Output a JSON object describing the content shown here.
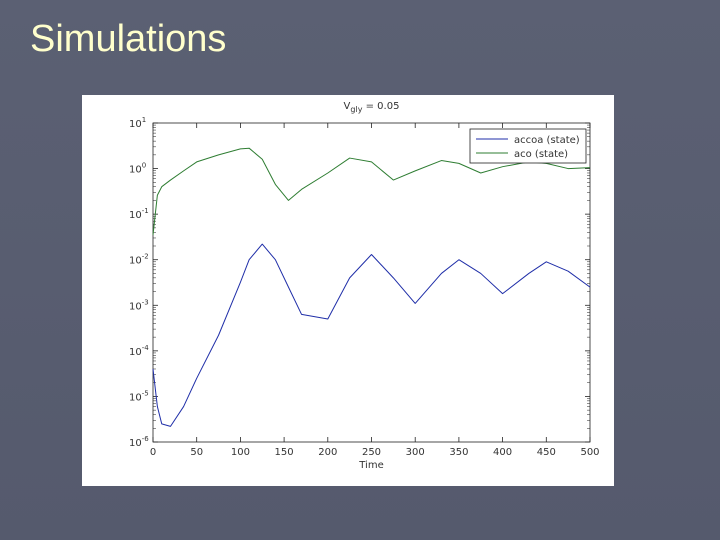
{
  "slide_title": "Simulations",
  "chart_data": {
    "type": "line",
    "title": {
      "main": "V",
      "sub": "gly",
      "rest": " = 0.05"
    },
    "xlabel": "Time",
    "log_y": true,
    "legend": "upper right",
    "x": [
      0,
      5,
      10,
      20,
      35,
      50,
      75,
      100,
      110,
      125,
      140,
      155,
      170,
      200,
      225,
      250,
      275,
      300,
      330,
      350,
      375,
      400,
      430,
      450,
      475,
      500
    ],
    "series": [
      {
        "name": "accoa (state)",
        "color": "#1f2ea8",
        "values": [
          4e-05,
          6e-06,
          2.5e-06,
          2.2e-06,
          6e-06,
          2.5e-05,
          0.00022,
          0.0032,
          0.01,
          0.022,
          0.01,
          0.0025,
          0.00063,
          0.0005,
          0.004,
          0.013,
          0.004,
          0.0011,
          0.005,
          0.01,
          0.005,
          0.0018,
          0.005,
          0.009,
          0.0056,
          0.0025
        ]
      },
      {
        "name": "aco (state)",
        "color": "#2e7d32",
        "values": [
          0.035,
          0.26,
          0.4,
          0.56,
          0.89,
          1.4,
          2.0,
          2.7,
          2.8,
          1.6,
          0.45,
          0.2,
          0.35,
          0.8,
          1.7,
          1.4,
          0.56,
          0.89,
          1.5,
          1.3,
          0.8,
          1.1,
          1.4,
          1.3,
          1.0,
          1.05
        ]
      }
    ],
    "xlim": [
      0,
      500
    ],
    "xticks": [
      0,
      50,
      100,
      150,
      200,
      250,
      300,
      350,
      400,
      450,
      500
    ],
    "ylim": [
      1e-06,
      10
    ],
    "yticks": [
      {
        "value": 1e-06,
        "label": "10",
        "exponent": "-6"
      },
      {
        "value": 1e-05,
        "label": "10",
        "exponent": "-5"
      },
      {
        "value": 0.0001,
        "label": "10",
        "exponent": "-4"
      },
      {
        "value": 0.001,
        "label": "10",
        "exponent": "-3"
      },
      {
        "value": 0.01,
        "label": "10",
        "exponent": "-2"
      },
      {
        "value": 0.1,
        "label": "10",
        "exponent": "-1"
      },
      {
        "value": 1,
        "label": "10",
        "exponent": "0"
      },
      {
        "value": 10,
        "label": "10",
        "exponent": "1"
      }
    ]
  }
}
